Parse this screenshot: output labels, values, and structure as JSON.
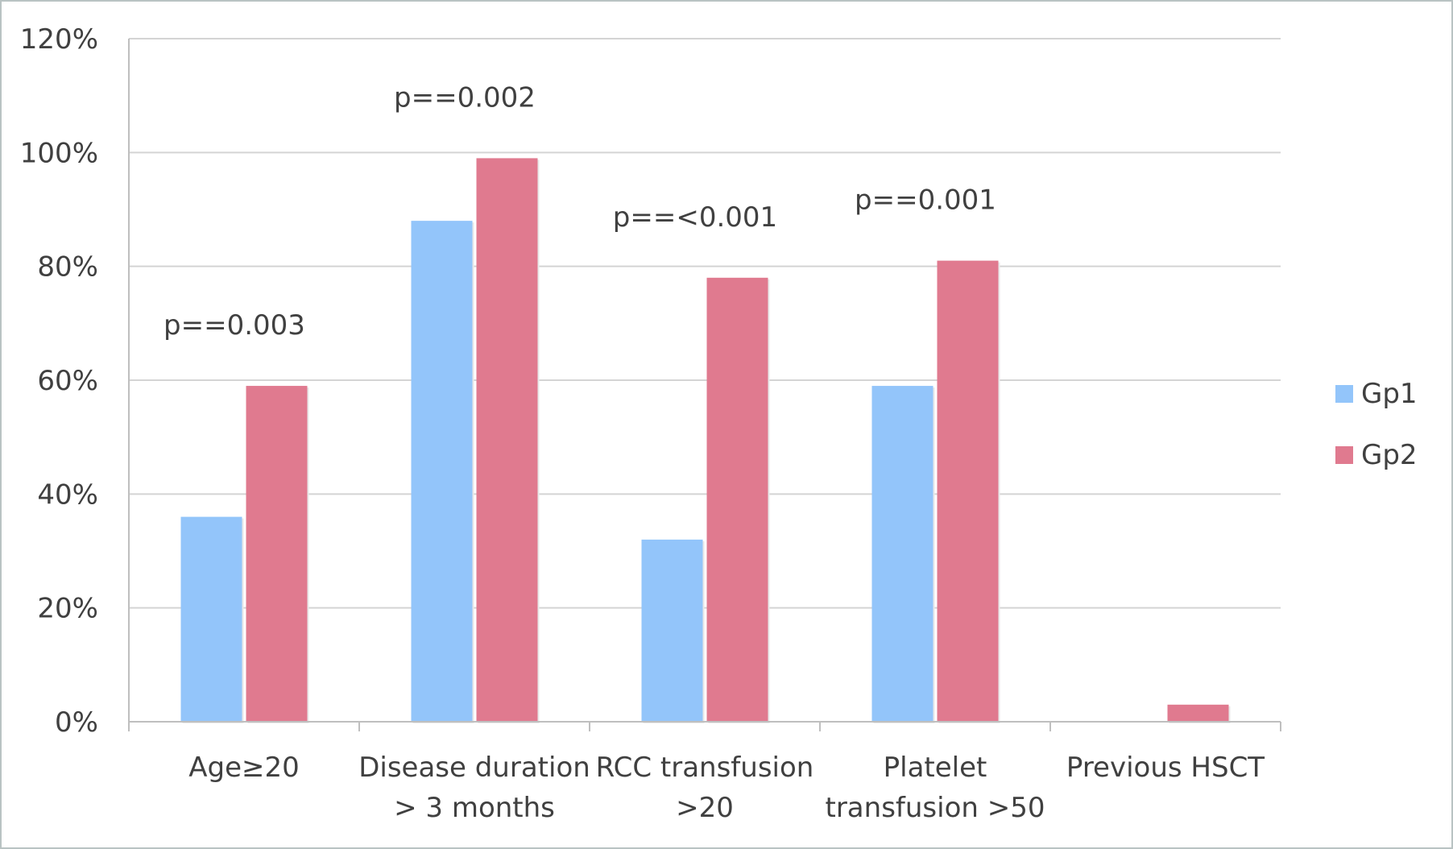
{
  "chart_data": {
    "type": "bar",
    "categories": [
      [
        "Age≥20"
      ],
      [
        "Disease duration",
        "> 3 months"
      ],
      [
        "RCC transfusion",
        ">20"
      ],
      [
        "Platelet",
        "transfusion >50"
      ],
      [
        "Previous HSCT"
      ]
    ],
    "series": [
      {
        "name": "Gp1",
        "color": "#93c5fa",
        "values": [
          36,
          88,
          32,
          59,
          0
        ]
      },
      {
        "name": "Gp2",
        "color": "#e07a8f",
        "values": [
          59,
          99,
          78,
          81,
          3
        ]
      }
    ],
    "annotations": [
      "p==0.003",
      "p==0.002",
      "p==<0.001",
      "p==0.001",
      ""
    ],
    "y_ticks": [
      "0%",
      "20%",
      "40%",
      "60%",
      "80%",
      "100%",
      "120%"
    ],
    "ylim": [
      0,
      120
    ],
    "grid": true,
    "legend_position": "right",
    "title": "",
    "xlabel": "",
    "ylabel": ""
  }
}
